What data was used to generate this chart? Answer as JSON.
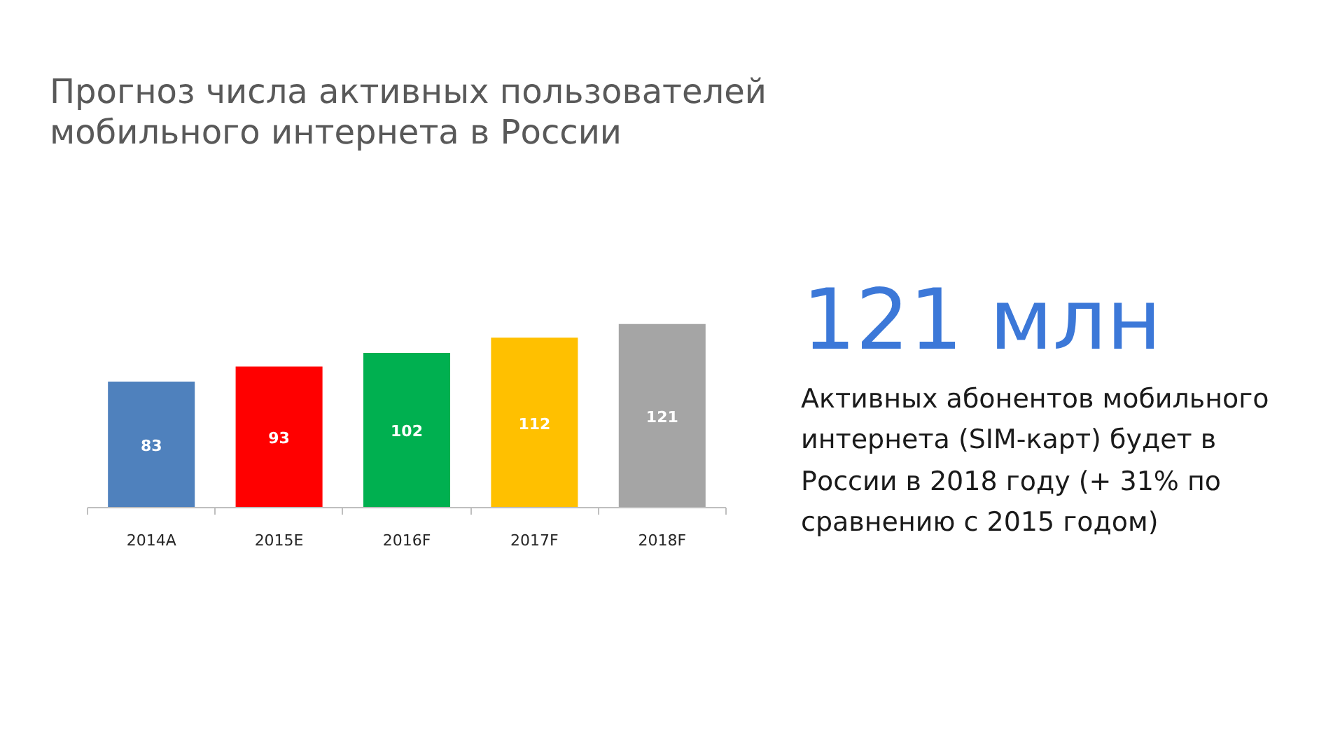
{
  "chart_data": {
    "type": "bar",
    "title": "Прогноз числа активных пользователей мобильного интернета в России",
    "categories": [
      "2014A",
      "2015E",
      "2016F",
      "2017F",
      "2018F"
    ],
    "values": [
      83,
      93,
      102,
      112,
      121
    ],
    "colors": [
      "#4f81bd",
      "#ff0000",
      "#00b050",
      "#ffc000",
      "#a5a5a5"
    ],
    "data_labels": true,
    "grid": false,
    "tick_labels": "x",
    "annotations": [
      "121 млн",
      "Активных абонентов мобильного интернета (SIM-карт) будет в России в 2018 году (+ 31% по сравнению с 2015 годом)"
    ]
  }
}
